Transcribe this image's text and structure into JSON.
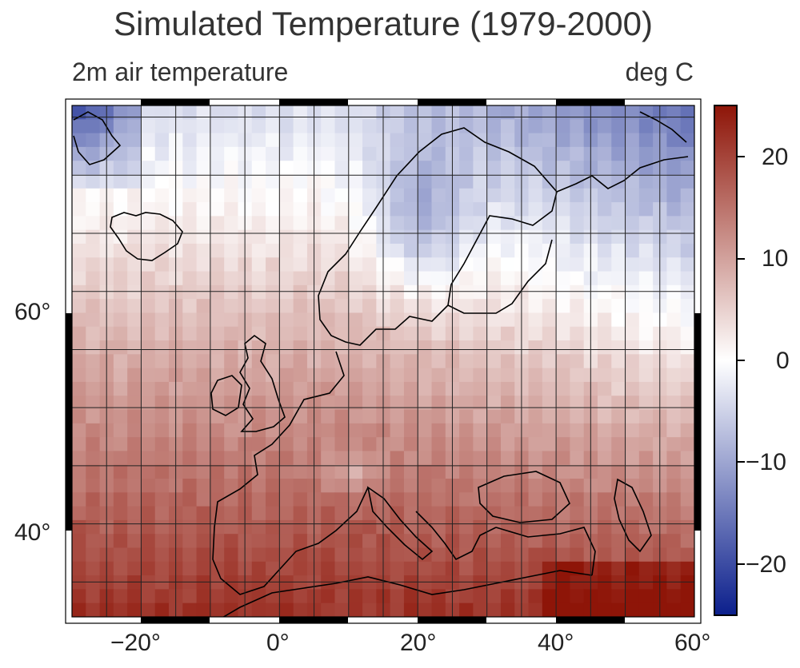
{
  "title": "Simulated Temperature (1979-2000)",
  "subtitle_left": "2m air temperature",
  "subtitle_right": "deg C",
  "map": {
    "variable": "2m air temperature",
    "units": "deg C",
    "lon_range": [
      -30,
      60
    ],
    "lat_range": [
      32,
      76
    ],
    "x_ticks": [
      "−20°",
      "0°",
      "20°",
      "40°",
      "60°"
    ],
    "y_ticks": [
      "60°",
      "40°"
    ]
  },
  "colorbar": {
    "range": [
      -25,
      25
    ],
    "ticks": [
      "20",
      "10",
      "0",
      "−10",
      "−20"
    ],
    "colors": {
      "low": "#0b1f8c",
      "mid": "#ffffff",
      "high": "#8e1508"
    }
  },
  "colors": {
    "land_outline": "#000000",
    "grid": "#222222"
  }
}
